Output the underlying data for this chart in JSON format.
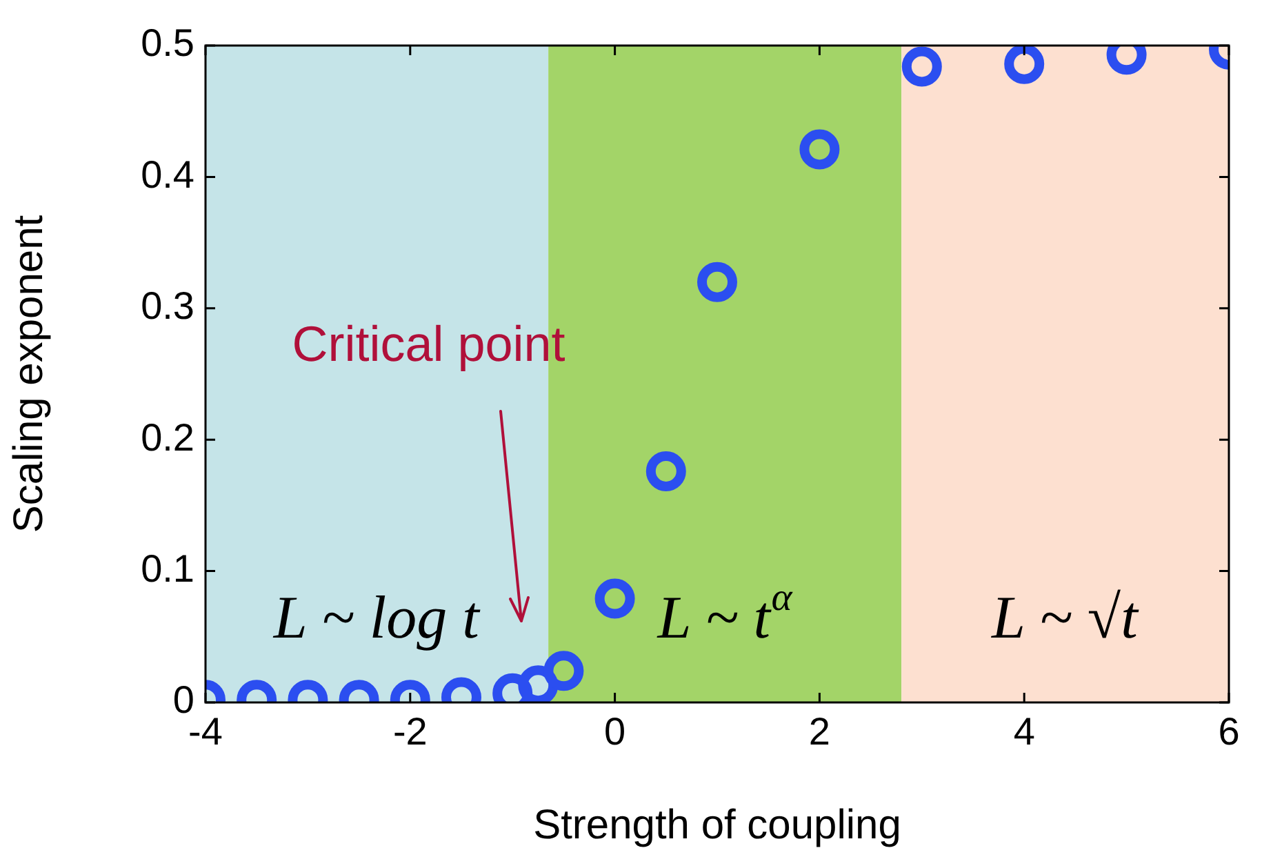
{
  "chart_data": {
    "type": "scatter",
    "xlabel": "Strength of coupling",
    "ylabel": "Scaling exponent",
    "x": [
      -4,
      -3.5,
      -3,
      -2.5,
      -2,
      -1.5,
      -1,
      -0.75,
      -0.5,
      0,
      0.5,
      1,
      2,
      3,
      4,
      5,
      6
    ],
    "series": [
      {
        "color": "#2b4ef0",
        "values": [
          0.002,
          0.002,
          0.002,
          0.002,
          0.002,
          0.004,
          0.007,
          0.013,
          0.024,
          0.079,
          0.176,
          0.32,
          0.421,
          0.484,
          0.486,
          0.493,
          0.497
        ]
      }
    ],
    "marker": "circle",
    "xlim": [
      -4,
      6
    ],
    "xticks": [
      -4,
      -2,
      0,
      2,
      4,
      6
    ],
    "ylim": [
      0,
      0.5
    ],
    "yticks": [
      0,
      0.1,
      0.2,
      0.3,
      0.4,
      0.5
    ],
    "bands": [
      {
        "axis": "x",
        "from": -4,
        "to": -0.65,
        "label": "L ~ log t",
        "color": "#c5e4e8"
      },
      {
        "axis": "x",
        "from": -0.65,
        "to": 2.8,
        "label": "L ~ t$^{α}$",
        "color": "#a3d468"
      },
      {
        "axis": "x",
        "from": 2.8,
        "to": 6,
        "label": "L ~ √t",
        "color": "#fde0d0"
      }
    ],
    "annotations": [
      "Critical point"
    ],
    "legend": false
  }
}
